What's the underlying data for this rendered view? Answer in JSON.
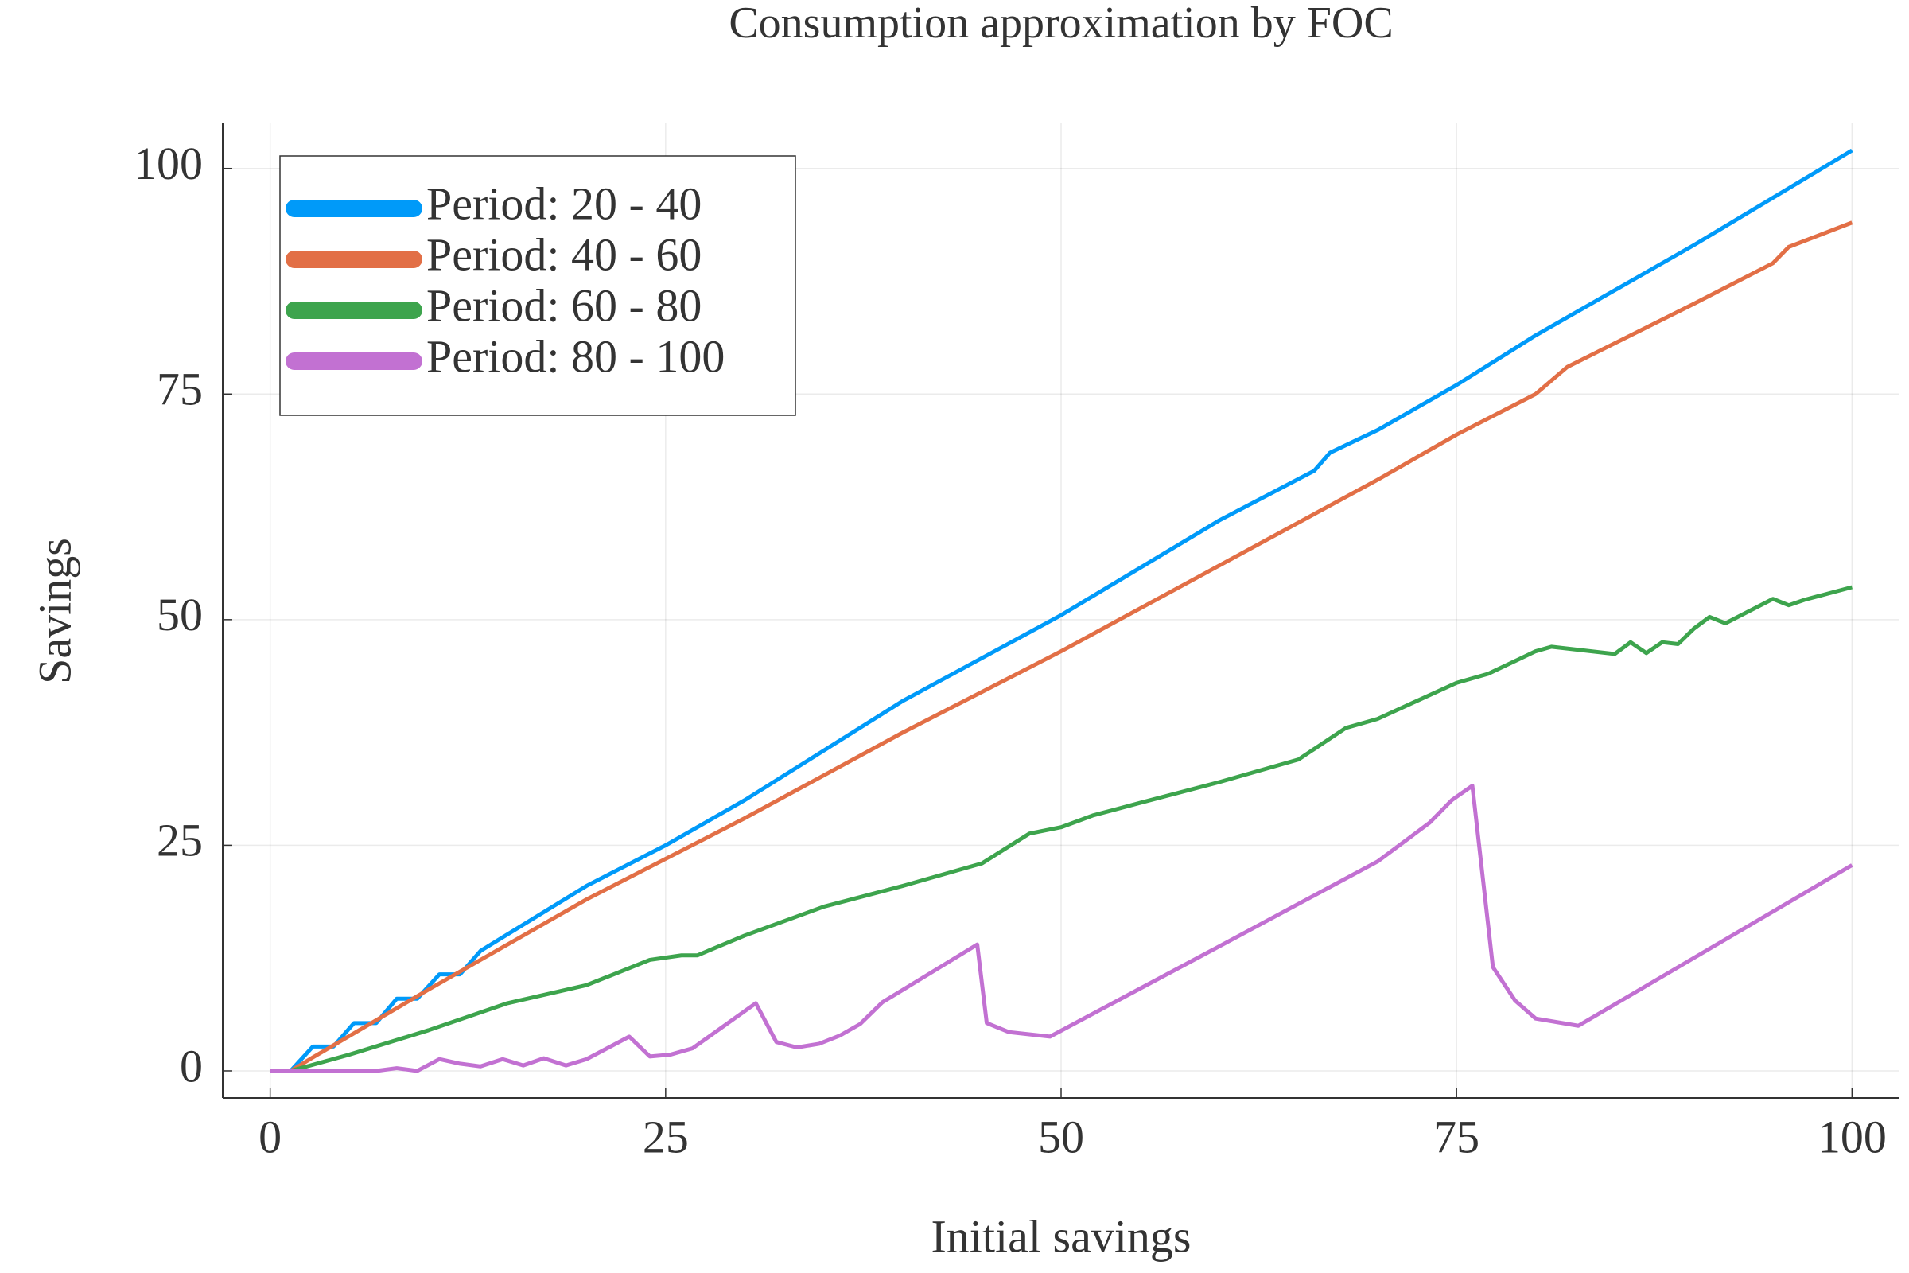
{
  "chart_data": {
    "type": "line",
    "title": "Consumption approximation by FOC",
    "xlabel": "Initial savings",
    "ylabel": "Savings",
    "xlim": [
      -3,
      103
    ],
    "ylim": [
      -3,
      105
    ],
    "xticks": [
      0,
      25,
      50,
      75,
      100
    ],
    "yticks": [
      0,
      25,
      50,
      75,
      100
    ],
    "grid": true,
    "legend": "top-left",
    "series": [
      {
        "name": "Period: 20 - 40",
        "color": "#009af9",
        "x": [
          0,
          1.3,
          2.7,
          4,
          5.3,
          6.7,
          8,
          9.3,
          10.7,
          12,
          13.3,
          20,
          25,
          30,
          40,
          50,
          60,
          66,
          67,
          70,
          75,
          80,
          90,
          100
        ],
        "values": [
          0,
          0,
          2.7,
          2.7,
          5.3,
          5.3,
          8,
          8,
          10.7,
          10.7,
          13.3,
          20.5,
          25,
          30,
          41,
          50.5,
          61,
          66.5,
          68.5,
          71,
          76,
          81.5,
          91.5,
          102
        ]
      },
      {
        "name": "Period: 40 - 60",
        "color": "#e26f46",
        "x": [
          0,
          1.3,
          2.7,
          10,
          20,
          25,
          30,
          40,
          50,
          60,
          70,
          75,
          80,
          82,
          90,
          95,
          96,
          100
        ],
        "values": [
          0,
          0,
          1.5,
          9,
          19,
          23.5,
          28,
          37.5,
          46.5,
          56,
          65.5,
          70.5,
          75,
          78,
          85,
          89.5,
          91.3,
          94
        ]
      },
      {
        "name": "Period: 60 - 80",
        "color": "#3da44d",
        "x": [
          0,
          1.3,
          5,
          10,
          15,
          20,
          24,
          26,
          27,
          30,
          35,
          40,
          45,
          48,
          50,
          52,
          55,
          60,
          65,
          68,
          70,
          75,
          77,
          80,
          81,
          85,
          86,
          87,
          88,
          89,
          90,
          91,
          92,
          95,
          96,
          97,
          100
        ],
        "values": [
          0,
          0,
          1.8,
          4.5,
          7.5,
          9.5,
          12.3,
          12.8,
          12.8,
          15,
          18.2,
          20.5,
          23,
          26.3,
          27,
          28.3,
          29.7,
          32,
          34.5,
          38,
          39,
          43,
          44,
          46.5,
          47,
          46.2,
          47.5,
          46.3,
          47.5,
          47.3,
          49,
          50.3,
          49.6,
          52.3,
          51.6,
          52.2,
          53.6
        ]
      },
      {
        "name": "Period: 80 - 100",
        "color": "#c271d2",
        "x": [
          0,
          1.3,
          6.7,
          8,
          9.3,
          10.7,
          12,
          13.3,
          14.7,
          16,
          17.3,
          18.7,
          20,
          21.3,
          22.7,
          24,
          25.3,
          26.7,
          30.7,
          32,
          33.3,
          34.7,
          36,
          37.3,
          38.7,
          44.7,
          45.3,
          46.7,
          49.3,
          60,
          70,
          73.3,
          74.7,
          76,
          77.3,
          78.7,
          80,
          82.7,
          100
        ],
        "values": [
          0,
          0,
          0,
          0.3,
          0,
          1.3,
          0.8,
          0.5,
          1.3,
          0.6,
          1.4,
          0.6,
          1.3,
          2.5,
          3.8,
          1.6,
          1.8,
          2.5,
          7.5,
          3.2,
          2.6,
          3,
          3.9,
          5.2,
          7.6,
          14,
          5.3,
          4.3,
          3.8,
          13.8,
          23.2,
          27.5,
          30,
          31.6,
          11.5,
          7.8,
          5.8,
          5,
          22.8
        ]
      }
    ]
  }
}
